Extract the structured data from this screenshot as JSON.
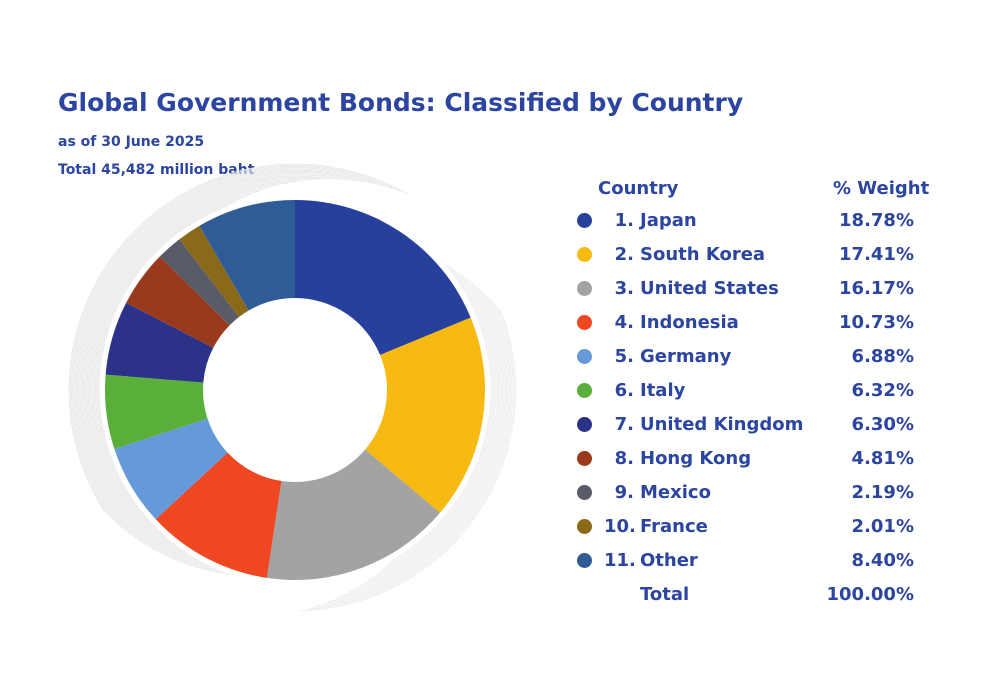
{
  "title": "Global Government Bonds: Classified by Country",
  "as_of": "as of  30 June 2025",
  "total_text": "Total 45,482 million baht",
  "legend_headers": {
    "country": "Country",
    "weight": "% Weight"
  },
  "total_row": {
    "label": "Total",
    "value": "100.00%"
  },
  "chart_data": {
    "type": "pie",
    "donut": true,
    "categories": [
      "Japan",
      "South Korea",
      "United States",
      "Indonesia",
      "Germany",
      "Italy",
      "United Kingdom",
      "Hong Kong",
      "Mexico",
      "France",
      "Other"
    ],
    "values": [
      18.78,
      17.41,
      16.17,
      10.73,
      6.88,
      6.32,
      6.3,
      4.81,
      2.19,
      2.01,
      8.4
    ],
    "labels": [
      "18.78%",
      "17.41%",
      "16.17%",
      "10.73%",
      "6.88%",
      "6.32%",
      "6.30%",
      "4.81%",
      "2.19%",
      "2.01%",
      "8.40%"
    ],
    "numbers": [
      "1.",
      "2.",
      "3.",
      "4.",
      "5.",
      "6.",
      "7.",
      "8.",
      "9.",
      "10.",
      "11."
    ],
    "colors": [
      "#27409b",
      "#f7ba12",
      "#a3a3a3",
      "#ee4722",
      "#6699d9",
      "#5aaf3a",
      "#2b3288",
      "#9a3a1d",
      "#595b66",
      "#8a6a18",
      "#2f5b97"
    ],
    "legend_placement": "right"
  }
}
